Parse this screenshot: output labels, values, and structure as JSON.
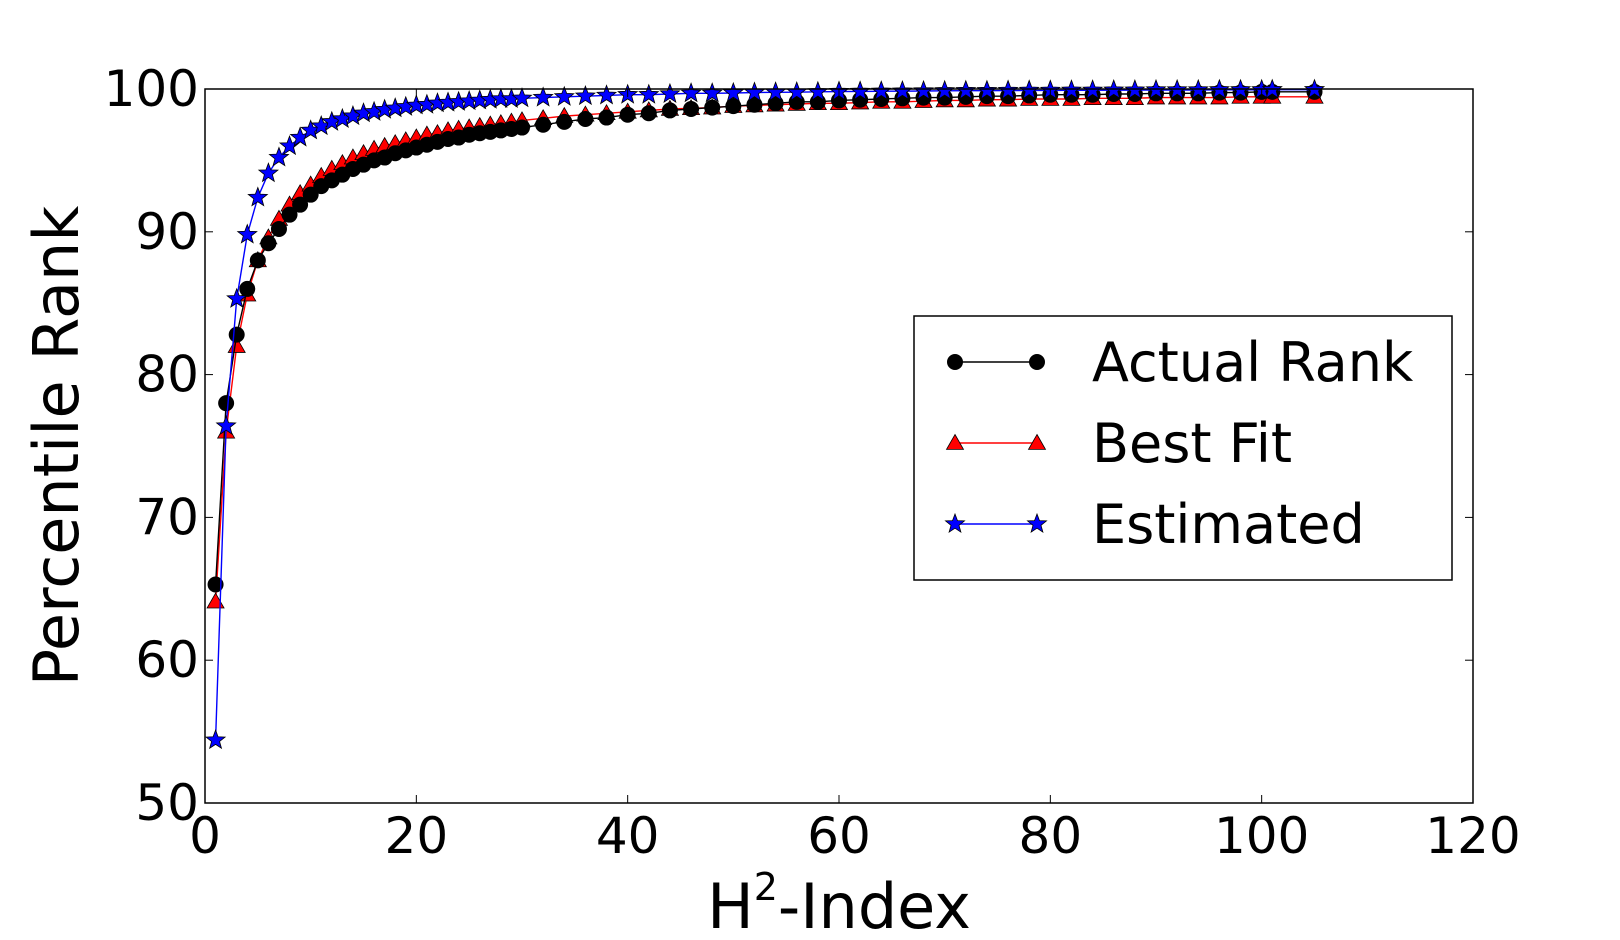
{
  "chart_data": {
    "type": "line",
    "title": "",
    "xlabel": "-Index",
    "xlabel_prefix": "H",
    "xlabel_superscript": "2",
    "ylabel": "Percentile Rank",
    "xlim": [
      0,
      120
    ],
    "ylim": [
      50,
      100
    ],
    "xticks": [
      0,
      20,
      40,
      60,
      80,
      100,
      120
    ],
    "yticks": [
      50,
      60,
      70,
      80,
      90,
      100
    ],
    "grid": false,
    "legend_position": "right",
    "series": [
      {
        "name": "Actual Rank",
        "color": "#000000",
        "marker": "circle",
        "points": [
          [
            1,
            65.3
          ],
          [
            2,
            78.0
          ],
          [
            3,
            82.8
          ],
          [
            4,
            86.0
          ],
          [
            5,
            88.0
          ],
          [
            6,
            89.2
          ],
          [
            7,
            90.2
          ],
          [
            8,
            91.2
          ],
          [
            9,
            91.9
          ],
          [
            10,
            92.6
          ],
          [
            11,
            93.2
          ],
          [
            12,
            93.6
          ],
          [
            13,
            94.0
          ],
          [
            14,
            94.4
          ],
          [
            15,
            94.7
          ],
          [
            16,
            95.0
          ],
          [
            17,
            95.2
          ],
          [
            18,
            95.5
          ],
          [
            19,
            95.7
          ],
          [
            20,
            95.9
          ],
          [
            21,
            96.1
          ],
          [
            22,
            96.3
          ],
          [
            23,
            96.5
          ],
          [
            24,
            96.6
          ],
          [
            25,
            96.8
          ],
          [
            26,
            96.9
          ],
          [
            27,
            97.0
          ],
          [
            28,
            97.1
          ],
          [
            29,
            97.2
          ],
          [
            30,
            97.3
          ],
          [
            32,
            97.5
          ],
          [
            34,
            97.7
          ],
          [
            36,
            97.9
          ],
          [
            38,
            98.0
          ],
          [
            40,
            98.2
          ],
          [
            42,
            98.3
          ],
          [
            44,
            98.5
          ],
          [
            46,
            98.6
          ],
          [
            48,
            98.7
          ],
          [
            50,
            98.8
          ],
          [
            52,
            98.9
          ],
          [
            54,
            99.0
          ],
          [
            56,
            99.1
          ],
          [
            58,
            99.1
          ],
          [
            60,
            99.2
          ],
          [
            62,
            99.25
          ],
          [
            64,
            99.3
          ],
          [
            66,
            99.35
          ],
          [
            68,
            99.4
          ],
          [
            70,
            99.4
          ],
          [
            72,
            99.45
          ],
          [
            74,
            99.5
          ],
          [
            76,
            99.5
          ],
          [
            78,
            99.55
          ],
          [
            80,
            99.6
          ],
          [
            82,
            99.6
          ],
          [
            84,
            99.6
          ],
          [
            86,
            99.65
          ],
          [
            88,
            99.65
          ],
          [
            90,
            99.7
          ],
          [
            92,
            99.7
          ],
          [
            94,
            99.7
          ],
          [
            96,
            99.75
          ],
          [
            98,
            99.75
          ],
          [
            100,
            99.8
          ],
          [
            101,
            99.8
          ],
          [
            105,
            99.8
          ]
        ]
      },
      {
        "name": "Best Fit",
        "color": "#ff0000",
        "marker": "triangle",
        "points": [
          [
            1,
            64.1
          ],
          [
            2,
            76.0
          ],
          [
            3,
            82.0
          ],
          [
            4,
            85.6
          ],
          [
            5,
            88.0
          ],
          [
            6,
            89.6
          ],
          [
            7,
            90.9
          ],
          [
            8,
            91.9
          ],
          [
            9,
            92.7
          ],
          [
            10,
            93.3
          ],
          [
            11,
            93.9
          ],
          [
            12,
            94.4
          ],
          [
            13,
            94.8
          ],
          [
            14,
            95.2
          ],
          [
            15,
            95.5
          ],
          [
            16,
            95.8
          ],
          [
            17,
            96.0
          ],
          [
            18,
            96.2
          ],
          [
            19,
            96.4
          ],
          [
            20,
            96.6
          ],
          [
            21,
            96.8
          ],
          [
            22,
            96.9
          ],
          [
            23,
            97.1
          ],
          [
            24,
            97.2
          ],
          [
            25,
            97.3
          ],
          [
            26,
            97.4
          ],
          [
            27,
            97.5
          ],
          [
            28,
            97.6
          ],
          [
            29,
            97.7
          ],
          [
            30,
            97.8
          ],
          [
            32,
            97.95
          ],
          [
            34,
            98.1
          ],
          [
            36,
            98.2
          ],
          [
            38,
            98.3
          ],
          [
            40,
            98.4
          ],
          [
            42,
            98.5
          ],
          [
            44,
            98.6
          ],
          [
            46,
            98.65
          ],
          [
            48,
            98.7
          ],
          [
            50,
            98.8
          ],
          [
            52,
            98.85
          ],
          [
            54,
            98.9
          ],
          [
            56,
            98.95
          ],
          [
            58,
            99.0
          ],
          [
            60,
            99.0
          ],
          [
            62,
            99.05
          ],
          [
            64,
            99.1
          ],
          [
            66,
            99.1
          ],
          [
            68,
            99.15
          ],
          [
            70,
            99.2
          ],
          [
            72,
            99.2
          ],
          [
            74,
            99.25
          ],
          [
            76,
            99.25
          ],
          [
            78,
            99.3
          ],
          [
            80,
            99.3
          ],
          [
            82,
            99.3
          ],
          [
            84,
            99.35
          ],
          [
            86,
            99.35
          ],
          [
            88,
            99.35
          ],
          [
            90,
            99.4
          ],
          [
            92,
            99.4
          ],
          [
            94,
            99.4
          ],
          [
            96,
            99.4
          ],
          [
            98,
            99.45
          ],
          [
            100,
            99.45
          ],
          [
            101,
            99.45
          ],
          [
            105,
            99.45
          ]
        ]
      },
      {
        "name": "Estimated",
        "color": "#0000ff",
        "marker": "star",
        "points": [
          [
            1,
            54.4
          ],
          [
            2,
            76.4
          ],
          [
            3,
            85.3
          ],
          [
            4,
            89.8
          ],
          [
            5,
            92.4
          ],
          [
            6,
            94.1
          ],
          [
            7,
            95.2
          ],
          [
            8,
            96.0
          ],
          [
            9,
            96.6
          ],
          [
            10,
            97.1
          ],
          [
            11,
            97.4
          ],
          [
            12,
            97.7
          ],
          [
            13,
            97.9
          ],
          [
            14,
            98.1
          ],
          [
            15,
            98.3
          ],
          [
            16,
            98.4
          ],
          [
            17,
            98.55
          ],
          [
            18,
            98.65
          ],
          [
            19,
            98.75
          ],
          [
            20,
            98.85
          ],
          [
            21,
            98.9
          ],
          [
            22,
            99.0
          ],
          [
            23,
            99.05
          ],
          [
            24,
            99.1
          ],
          [
            25,
            99.15
          ],
          [
            26,
            99.2
          ],
          [
            27,
            99.25
          ],
          [
            28,
            99.3
          ],
          [
            29,
            99.3
          ],
          [
            30,
            99.35
          ],
          [
            32,
            99.4
          ],
          [
            34,
            99.45
          ],
          [
            36,
            99.5
          ],
          [
            38,
            99.55
          ],
          [
            40,
            99.6
          ],
          [
            42,
            99.6
          ],
          [
            44,
            99.65
          ],
          [
            46,
            99.7
          ],
          [
            48,
            99.7
          ],
          [
            50,
            99.72
          ],
          [
            52,
            99.75
          ],
          [
            54,
            99.77
          ],
          [
            56,
            99.78
          ],
          [
            58,
            99.8
          ],
          [
            60,
            99.82
          ],
          [
            62,
            99.83
          ],
          [
            64,
            99.84
          ],
          [
            66,
            99.85
          ],
          [
            68,
            99.86
          ],
          [
            70,
            99.87
          ],
          [
            72,
            99.88
          ],
          [
            74,
            99.88
          ],
          [
            76,
            99.89
          ],
          [
            78,
            99.9
          ],
          [
            80,
            99.9
          ],
          [
            82,
            99.91
          ],
          [
            84,
            99.91
          ],
          [
            86,
            99.92
          ],
          [
            88,
            99.92
          ],
          [
            90,
            99.93
          ],
          [
            92,
            99.93
          ],
          [
            94,
            99.93
          ],
          [
            96,
            99.94
          ],
          [
            98,
            99.94
          ],
          [
            100,
            99.94
          ],
          [
            101,
            99.95
          ],
          [
            105,
            99.95
          ]
        ]
      }
    ]
  }
}
